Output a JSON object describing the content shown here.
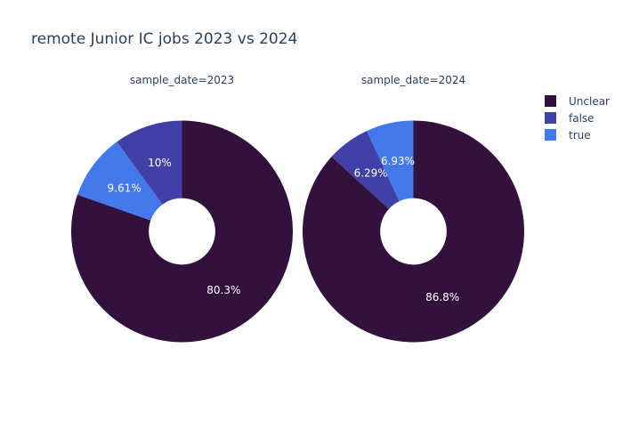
{
  "chart_data": {
    "type": "pie",
    "title": "remote Junior IC jobs 2023 vs 2024",
    "legend_position": "top-right",
    "hole": 0.3,
    "direction": "clockwise",
    "legend": [
      {
        "name": "Unclear",
        "color": "#32113c"
      },
      {
        "name": "false",
        "color": "#4140a6"
      },
      {
        "name": "true",
        "color": "#4479ec"
      }
    ],
    "subplots": [
      {
        "subtitle": "sample_date=2023",
        "slices": [
          {
            "label": "Unclear",
            "value": 80.3,
            "text": "80.3%",
            "color": "#32113c"
          },
          {
            "label": "true",
            "value": 9.61,
            "text": "9.61%",
            "color": "#4479ec"
          },
          {
            "label": "false",
            "value": 10.0,
            "text": "10%",
            "color": "#4140a6"
          }
        ]
      },
      {
        "subtitle": "sample_date=2024",
        "slices": [
          {
            "label": "Unclear",
            "value": 86.8,
            "text": "86.8%",
            "color": "#32113c"
          },
          {
            "label": "false",
            "value": 6.29,
            "text": "6.29%",
            "color": "#4140a6"
          },
          {
            "label": "true",
            "value": 6.93,
            "text": "6.93%",
            "color": "#4479ec"
          }
        ]
      }
    ]
  }
}
